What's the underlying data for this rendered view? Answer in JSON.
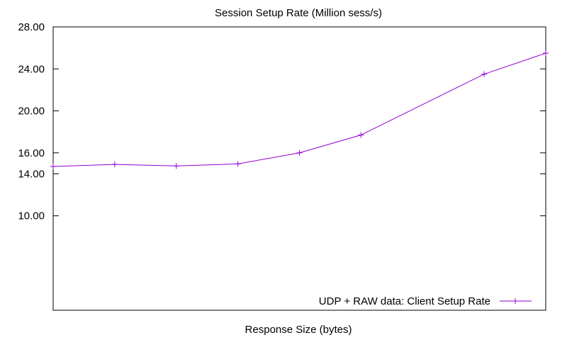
{
  "chart_data": {
    "type": "line",
    "title": "Session Setup Rate (Million sess/s)",
    "xlabel": "Response Size (bytes)",
    "ylabel": "",
    "xlim": [
      0,
      8
    ],
    "ylim": [
      1,
      28
    ],
    "y_ticks": [
      10,
      14,
      16,
      20,
      24,
      28
    ],
    "y_tick_labels": [
      "10.00",
      "14.00",
      "16.00",
      "20.00",
      "24.00",
      "28.00"
    ],
    "x_tick_labels": [],
    "grid": false,
    "legend_position": "bottom-right",
    "series": [
      {
        "name": "UDP + RAW data: Client Setup Rate",
        "color": "#9400d3",
        "marker": "plus",
        "x": [
          0,
          1,
          2,
          3,
          4,
          5,
          7,
          8
        ],
        "values": [
          14.7,
          14.9,
          14.75,
          14.95,
          16.0,
          17.7,
          23.5,
          25.5
        ]
      }
    ]
  }
}
